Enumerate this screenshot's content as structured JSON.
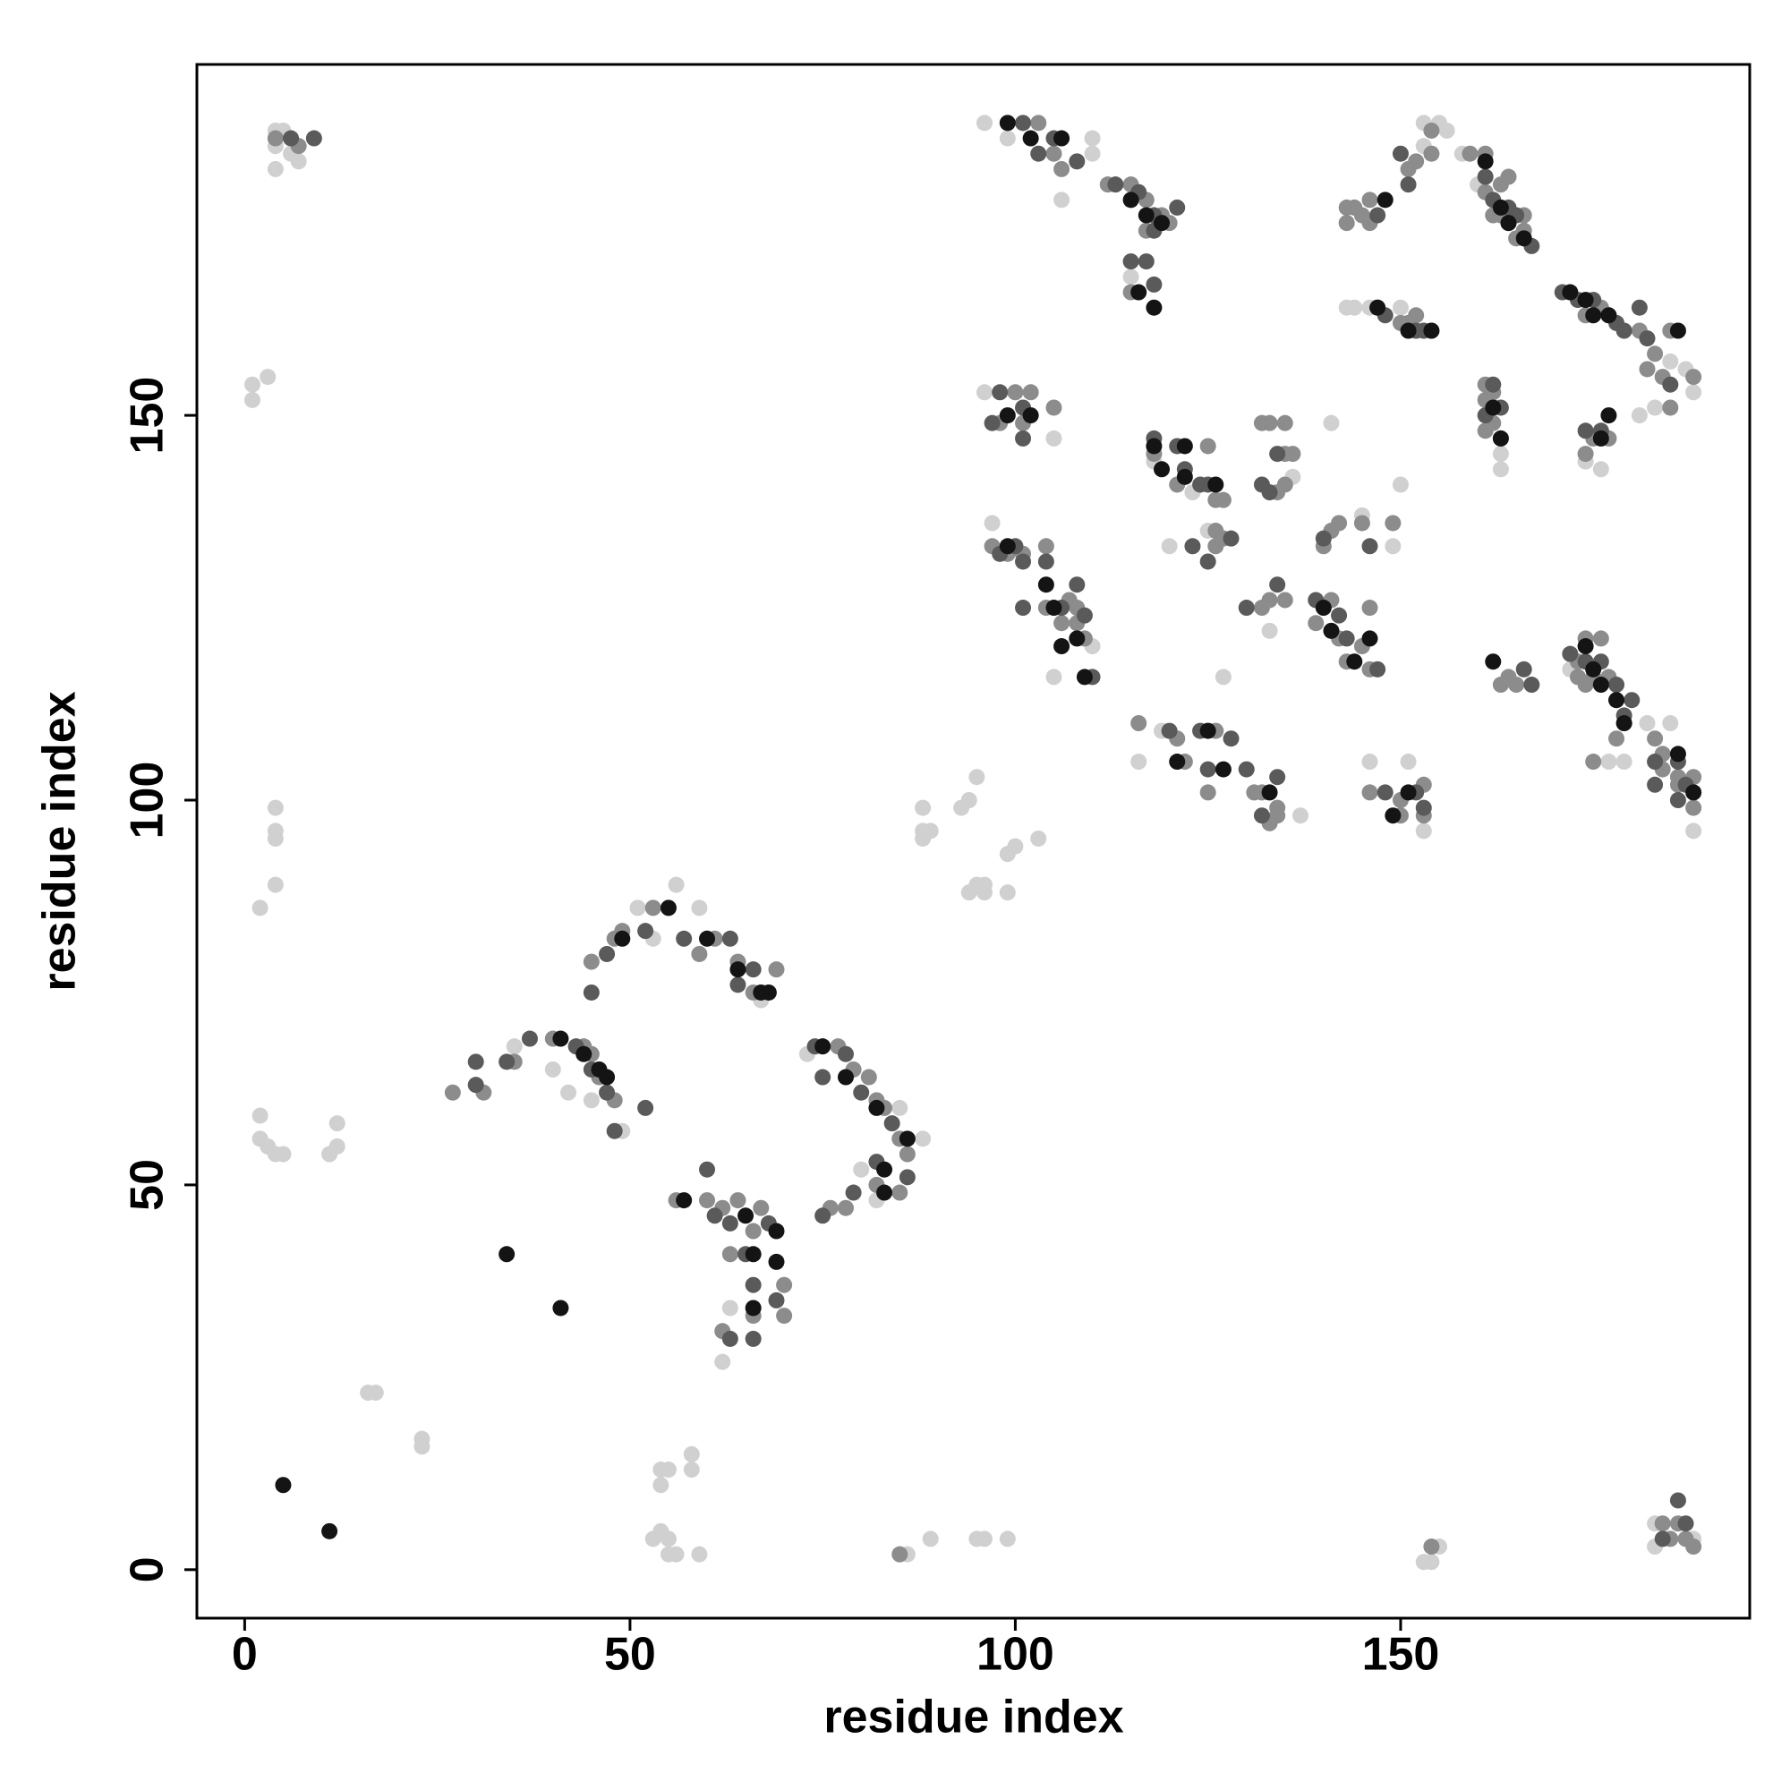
{
  "chart_data": {
    "type": "scatter",
    "x_label": "residue index",
    "y_label": "residue index",
    "xlim": [
      -6.2,
      195.3
    ],
    "ylim": [
      -6.3,
      195.6
    ],
    "xticks": [
      0,
      50,
      100,
      150
    ],
    "yticks": [
      0,
      50,
      100,
      150
    ],
    "series": [
      {
        "color": "#d0d0d0",
        "x": [
          4,
          5,
          4,
          6,
          4,
          7,
          1,
          1,
          3,
          2,
          4,
          4,
          4,
          4,
          2,
          2,
          3,
          4,
          5,
          11,
          12,
          12,
          16,
          17,
          23,
          23,
          54,
          55,
          54,
          58,
          58,
          53,
          54,
          55,
          55,
          56,
          59,
          86,
          89,
          95,
          96,
          99,
          153,
          154,
          155,
          183,
          183,
          188,
          88,
          88,
          88,
          89,
          93,
          94,
          95,
          94,
          95,
          96,
          96,
          99,
          99,
          100,
          103,
          35,
          40,
          42,
          45,
          49,
          51,
          53,
          59,
          56,
          67,
          62,
          63,
          73,
          80,
          82,
          85,
          88,
          96,
          99,
          106,
          110,
          110,
          115,
          96,
          105,
          97,
          110,
          105,
          120,
          127,
          125,
          123,
          118,
          141,
          133,
          136,
          145,
          149,
          150,
          116,
          119,
          137,
          146,
          151,
          153,
          153,
          155,
          156,
          153,
          143,
          144,
          146,
          150,
          158,
          160,
          163,
          163,
          185,
          187,
          188,
          183,
          181,
          174,
          176,
          172,
          177,
          179,
          182,
          185,
          188
        ],
        "values": [
          187,
          187,
          185,
          184,
          182,
          183,
          154,
          152,
          155,
          86,
          89,
          96,
          95,
          99,
          59,
          56,
          55,
          54,
          54,
          54,
          58,
          55,
          23,
          23,
          17,
          16,
          13,
          13,
          11,
          15,
          13,
          4,
          5,
          4,
          2,
          2,
          2,
          2,
          4,
          4,
          4,
          4,
          1,
          1,
          3,
          6,
          3,
          4,
          99,
          96,
          95,
          96,
          99,
          100,
          103,
          88,
          89,
          89,
          88,
          88,
          93,
          94,
          95,
          68,
          65,
          62,
          61,
          57,
          86,
          82,
          86,
          89,
          74,
          27,
          34,
          67,
          52,
          48,
          60,
          56,
          188,
          186,
          178,
          186,
          184,
          168,
          153,
          147,
          136,
          120,
          116,
          133,
          116,
          135,
          140,
          144,
          149,
          122,
          142,
          137,
          133,
          141,
          105,
          109,
          98,
          105,
          105,
          96,
          188,
          188,
          187,
          185,
          164,
          164,
          164,
          164,
          184,
          180,
          145,
          143,
          157,
          156,
          153,
          151,
          150,
          144,
          143,
          117,
          105,
          105,
          110,
          110,
          96
        ]
      },
      {
        "color": "#8c8c8c",
        "x": [
          4,
          7,
          27,
          31,
          35,
          40,
          44,
          45,
          46,
          48,
          45,
          48,
          49,
          53,
          59,
          61,
          64,
          66,
          69,
          56,
          60,
          62,
          63,
          64,
          66,
          66,
          67,
          70,
          70,
          62,
          77,
          79,
          81,
          82,
          83,
          85,
          86,
          82,
          78,
          76,
          85,
          103,
          105,
          106,
          112,
          115,
          117,
          119,
          120,
          117,
          115,
          100,
          102,
          98,
          101,
          105,
          97,
          99,
          101,
          104,
          104,
          106,
          107,
          108,
          109,
          108,
          118,
          121,
          125,
          126,
          127,
          126,
          127,
          126,
          132,
          133,
          135,
          135,
          136,
          134,
          135,
          140,
          141,
          142,
          145,
          149,
          132,
          133,
          135,
          139,
          141,
          142,
          143,
          145,
          146,
          146,
          116,
          121,
          122,
          125,
          126,
          131,
          133,
          134,
          134,
          132,
          146,
          150,
          150,
          153,
          153,
          154,
          154,
          152,
          151,
          146,
          145,
          144,
          143,
          143,
          146,
          147,
          150,
          151,
          154,
          152,
          159,
          161,
          161,
          163,
          163,
          164,
          165,
          166,
          166,
          162,
          164,
          161,
          161,
          162,
          163,
          162,
          161,
          174,
          176,
          177,
          181,
          183,
          185,
          185,
          182,
          184,
          188,
          174,
          175,
          177,
          163,
          164,
          165,
          173,
          174,
          175,
          176,
          177,
          178,
          179,
          178,
          175,
          174,
          173,
          183,
          184,
          184,
          186,
          188,
          188,
          188,
          186,
          184,
          186,
          185,
          187,
          188,
          85,
          154
        ],
        "values": [
          186,
          185,
          62,
          62,
          66,
          69,
          68,
          67,
          64,
          61,
          79,
          82,
          83,
          86,
          80,
          82,
          79,
          75,
          78,
          48,
          48,
          47,
          41,
          48,
          44,
          33,
          47,
          37,
          33,
          31,
          68,
          65,
          64,
          61,
          60,
          56,
          54,
          50,
          47,
          47,
          49,
          188,
          184,
          182,
          180,
          180,
          178,
          176,
          175,
          174,
          166,
          153,
          153,
          149,
          149,
          151,
          133,
          132,
          132,
          133,
          125,
          123,
          126,
          125,
          121,
          123,
          145,
          141,
          146,
          139,
          139,
          135,
          134,
          133,
          149,
          149,
          149,
          145,
          145,
          140,
          141,
          133,
          135,
          136,
          136,
          136,
          125,
          126,
          126,
          123,
          126,
          121,
          118,
          120,
          117,
          125,
          110,
          108,
          105,
          101,
          109,
          101,
          97,
          99,
          98,
          101,
          101,
          100,
          98,
          102,
          98,
          187,
          184,
          183,
          182,
          178,
          176,
          177,
          177,
          175,
          175,
          164,
          162,
          162,
          161,
          163,
          184,
          184,
          179,
          180,
          176,
          175,
          173,
          174,
          176,
          176,
          181,
          152,
          148,
          149,
          147,
          153,
          154,
          163,
          164,
          163,
          161,
          158,
          161,
          151,
          156,
          155,
          155,
          145,
          147,
          147,
          115,
          116,
          115,
          118,
          121,
          116,
          121,
          116,
          113,
          110,
          108,
          105,
          115,
          116,
          108,
          104,
          106,
          103,
          103,
          101,
          99,
          102,
          6,
          6,
          4,
          4,
          3,
          2,
          3
        ]
      },
      {
        "color": "#5a5a5a",
        "x": [
          6,
          9,
          30,
          30,
          34,
          37,
          43,
          45,
          47,
          48,
          52,
          45,
          47,
          52,
          57,
          63,
          64,
          66,
          60,
          61,
          63,
          65,
          66,
          68,
          69,
          63,
          66,
          74,
          75,
          78,
          80,
          84,
          86,
          82,
          79,
          75,
          101,
          103,
          105,
          108,
          113,
          116,
          118,
          121,
          118,
          115,
          117,
          118,
          98,
          101,
          97,
          101,
          98,
          100,
          101,
          104,
          106,
          108,
          109,
          110,
          101,
          118,
          121,
          122,
          124,
          125,
          123,
          125,
          128,
          133,
          134,
          132,
          140,
          146,
          130,
          134,
          139,
          142,
          143,
          147,
          120,
          124,
          125,
          128,
          130,
          132,
          134,
          148,
          152,
          153,
          150,
          147,
          151,
          148,
          152,
          153,
          161,
          162,
          164,
          165,
          167,
          161,
          162,
          163,
          171,
          173,
          175,
          178,
          179,
          181,
          182,
          185,
          174,
          176,
          166,
          167,
          172,
          174,
          176,
          178,
          179,
          180,
          183,
          183,
          186,
          186,
          187,
          186,
          187,
          184
        ],
        "values": [
          186,
          186,
          66,
          63,
          66,
          69,
          68,
          65,
          62,
          57,
          60,
          75,
          80,
          83,
          82,
          82,
          76,
          78,
          52,
          46,
          45,
          41,
          37,
          45,
          35,
          30,
          30,
          68,
          64,
          67,
          62,
          58,
          51,
          53,
          49,
          46,
          188,
          184,
          186,
          183,
          180,
          179,
          176,
          177,
          174,
          170,
          170,
          167,
          153,
          151,
          149,
          147,
          132,
          133,
          131,
          131,
          125,
          128,
          124,
          116,
          125,
          147,
          146,
          143,
          141,
          141,
          133,
          131,
          134,
          140,
          145,
          141,
          134,
          133,
          125,
          128,
          126,
          124,
          121,
          117,
          109,
          109,
          104,
          108,
          104,
          98,
          103,
          101,
          101,
          99,
          184,
          176,
          180,
          163,
          161,
          161,
          181,
          178,
          177,
          176,
          172,
          150,
          154,
          151,
          166,
          165,
          165,
          162,
          161,
          164,
          160,
          154,
          148,
          148,
          117,
          115,
          119,
          118,
          118,
          115,
          111,
          113,
          105,
          102,
          105,
          100,
          102,
          9,
          6,
          4
        ]
      },
      {
        "color": "#141414",
        "x": [
          5,
          11,
          34,
          41,
          41,
          44,
          46,
          47,
          49,
          55,
          60,
          64,
          67,
          68,
          57,
          65,
          66,
          69,
          69,
          66,
          75,
          78,
          82,
          83,
          86,
          83,
          99,
          102,
          106,
          115,
          117,
          119,
          116,
          118,
          99,
          102,
          99,
          104,
          105,
          106,
          108,
          109,
          118,
          119,
          122,
          122,
          126,
          140,
          141,
          144,
          146,
          121,
          125,
          127,
          133,
          149,
          151,
          148,
          147,
          151,
          154,
          161,
          163,
          164,
          166,
          162,
          163,
          172,
          174,
          175,
          177,
          186,
          176,
          177,
          162,
          174,
          175,
          176,
          178,
          179,
          186,
          188
        ],
        "values": [
          11,
          5,
          41,
          34,
          69,
          67,
          65,
          64,
          82,
          86,
          82,
          78,
          75,
          75,
          48,
          46,
          41,
          44,
          40,
          34,
          68,
          64,
          60,
          52,
          56,
          49,
          188,
          186,
          186,
          178,
          176,
          175,
          166,
          164,
          150,
          150,
          133,
          128,
          125,
          120,
          121,
          116,
          146,
          143,
          146,
          142,
          141,
          125,
          122,
          118,
          121,
          105,
          109,
          104,
          101,
          98,
          101,
          178,
          164,
          161,
          161,
          183,
          177,
          175,
          173,
          151,
          147,
          166,
          165,
          163,
          163,
          161,
          147,
          150,
          118,
          120,
          117,
          115,
          113,
          110,
          106,
          101
        ]
      }
    ]
  }
}
